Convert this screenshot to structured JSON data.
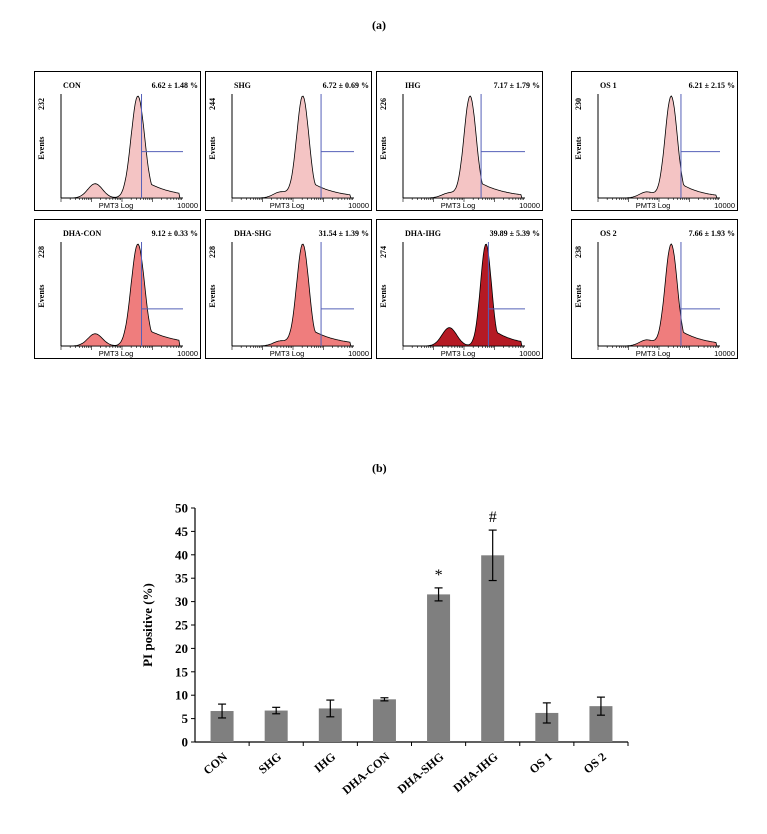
{
  "figure": {
    "label_a": "(a)",
    "label_b": "(b)"
  },
  "flow_panels": [
    {
      "name": "CON",
      "ymax": "232",
      "stat": "6.62 ± 1.48 %",
      "xlabel": "PMT3 Log",
      "xmax": "10000",
      "fill": "#f4c4c4"
    },
    {
      "name": "SHG",
      "ymax": "244",
      "stat": "6.72 ± 0.69 %",
      "xlabel": "PMT3 Log",
      "xmax": "10000",
      "fill": "#f4c4c4"
    },
    {
      "name": "IHG",
      "ymax": "226",
      "stat": "7.17 ± 1.79 %",
      "xlabel": "PMT3 Log",
      "xmax": "10000",
      "fill": "#f4c4c4"
    },
    {
      "name": "OS 1",
      "ymax": "230",
      "stat": "6.21 ± 2.15 %",
      "xlabel": "PMT3 Log",
      "xmax": "10000",
      "fill": "#f4c4c4"
    },
    {
      "name": "DHA-CON",
      "ymax": "228",
      "stat": "9.12 ± 0.33 %",
      "xlabel": "PMT3 Log",
      "xmax": "10000",
      "fill": "#ef7d7d"
    },
    {
      "name": "DHA-SHG",
      "ymax": "228",
      "stat": "31.54 ± 1.39 %",
      "xlabel": "PMT3 Log",
      "xmax": "10000",
      "fill": "#ef7d7d"
    },
    {
      "name": "DHA-IHG",
      "ymax": "274",
      "stat": "39.89 ± 5.39 %",
      "xlabel": "PMT3 Log",
      "xmax": "10000",
      "fill": "#b51a24"
    },
    {
      "name": "OS 2",
      "ymax": "238",
      "stat": "7.66 ± 1.93 %",
      "xlabel": "PMT3 Log",
      "xmax": "10000",
      "fill": "#ef7d7d"
    }
  ],
  "flow_axis_label": "Events",
  "chart_data": {
    "type": "bar",
    "title": "",
    "xlabel": "",
    "ylabel": "PI positive (%)",
    "categories": [
      "CON",
      "SHG",
      "IHG",
      "DHA-CON",
      "DHA-SHG",
      "DHA-IHG",
      "OS 1",
      "OS 2"
    ],
    "values": [
      6.62,
      6.72,
      7.17,
      9.12,
      31.54,
      39.89,
      6.21,
      7.66
    ],
    "errors": [
      1.48,
      0.69,
      1.79,
      0.33,
      1.39,
      5.39,
      2.15,
      1.93
    ],
    "annotations": [
      "",
      "",
      "",
      "",
      "*",
      "#",
      "",
      ""
    ],
    "ylim": [
      0,
      50
    ],
    "yticks": [
      0,
      5,
      10,
      15,
      20,
      25,
      30,
      35,
      40,
      45,
      50
    ],
    "bar_color": "#7f7f7f",
    "grid": false
  }
}
